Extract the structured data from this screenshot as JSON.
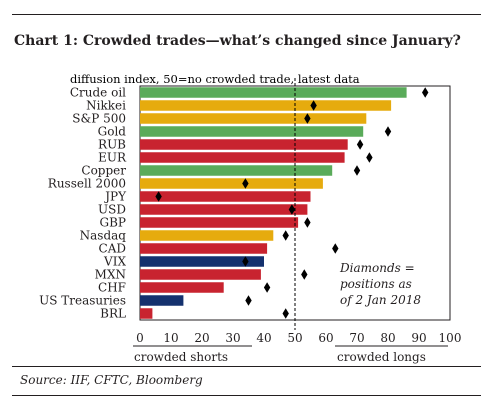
{
  "header": {
    "title": "Chart 1:  Crowded trades—what’s changed since January?",
    "source": "Source: IIF, CFTC, Bloomberg"
  },
  "colors": {
    "green": "#5aab5a",
    "gold": "#e6ab0e",
    "red": "#c8232f",
    "navy": "#14316e",
    "marker": "#000000",
    "reference_line": "#000000"
  },
  "chart_data": {
    "type": "bar",
    "orientation": "horizontal",
    "subtitle": "diffusion index, 50=no crowded trade, latest data",
    "categories": [
      "Crude oil",
      "Nikkei",
      "S&P 500",
      "Gold",
      "RUB",
      "EUR",
      "Copper",
      "Russell 2000",
      "JPY",
      "USD",
      "GBP",
      "Nasdaq",
      "CAD",
      "VIX",
      "MXN",
      "CHF",
      "US Treasuries",
      "BRL"
    ],
    "series": [
      {
        "values": [
          86,
          81,
          73,
          72,
          67,
          66,
          62,
          59,
          55,
          54,
          51,
          43,
          41,
          40,
          39,
          27,
          14,
          4
        ],
        "colors": [
          "green",
          "gold",
          "gold",
          "green",
          "red",
          "red",
          "green",
          "gold",
          "red",
          "red",
          "red",
          "gold",
          "red",
          "navy",
          "red",
          "red",
          "navy",
          "red"
        ]
      },
      {
        "marker": "diamond",
        "values": [
          92,
          56,
          54,
          80,
          71,
          74,
          70,
          34,
          6,
          49,
          54,
          47,
          63,
          34,
          53,
          41,
          35,
          47
        ]
      }
    ],
    "xlim": [
      0,
      100
    ],
    "xticks": [
      0,
      10,
      20,
      30,
      40,
      50,
      60,
      70,
      80,
      90,
      100
    ],
    "reference_line": 50,
    "annotation": [
      "Diamonds =",
      "positions as",
      "of 2 Jan 2018"
    ],
    "axis_notes": {
      "left": "crowded shorts",
      "right": "crowded longs"
    },
    "grid": false,
    "legend": "none"
  }
}
